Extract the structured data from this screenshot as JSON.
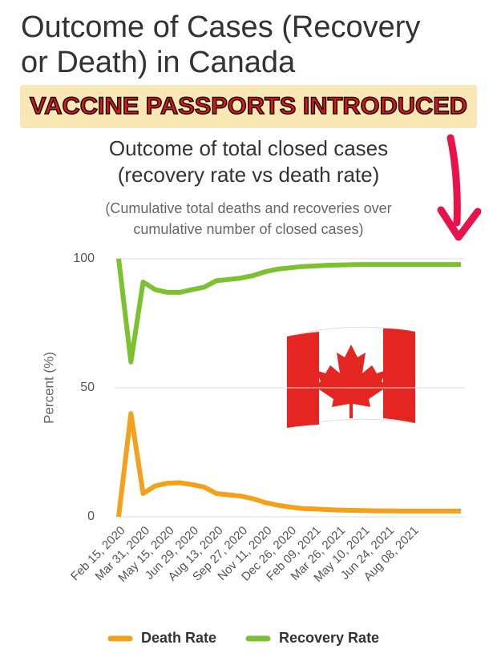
{
  "header": {
    "title_lines": [
      "Outcome of Cases (Recovery",
      "or Death) in Canada"
    ],
    "banner": "VACCINE PASSPORTS INTRODUCED"
  },
  "chart_data": {
    "type": "line",
    "title_lines": [
      "Outcome of total closed cases",
      "(recovery rate vs death rate)"
    ],
    "subtitle_lines": [
      "(Cumulative total deaths and recoveries over",
      "cumulative number of closed cases)"
    ],
    "ylabel": "Percent (%)",
    "categories": [
      "Feb 15, 2020",
      null,
      "Mar 31, 2020",
      null,
      "May 15, 2020",
      null,
      "Jun 29, 2020",
      null,
      "Aug 13, 2020",
      null,
      "Sep 27, 2020",
      null,
      "Nov 11, 2020",
      null,
      "Dec 26, 2020",
      null,
      "Feb 09, 2021",
      null,
      "Mar 26, 2021",
      null,
      "May 10, 2021",
      null,
      "Jun 24, 2021",
      null,
      "Aug 08, 2021",
      null,
      null,
      null,
      null
    ],
    "series": [
      {
        "name": "Death Rate",
        "color": "#f5a01a",
        "values": [
          0,
          40,
          9,
          12,
          13,
          13.2,
          12.5,
          11.5,
          9,
          8.5,
          8,
          7,
          5.5,
          4.5,
          3.8,
          3.2,
          3,
          2.8,
          2.6,
          2.5,
          2.4,
          2.3,
          2.3,
          2.2,
          2.2,
          2.2,
          2.2,
          2.2,
          2.2
        ]
      },
      {
        "name": "Recovery Rate",
        "color": "#7cc22e",
        "values": [
          100,
          60,
          91,
          88,
          87,
          87,
          88,
          89,
          91.5,
          92,
          92.5,
          93.5,
          95,
          96,
          96.5,
          97,
          97.2,
          97.5,
          97.6,
          97.7,
          97.8,
          97.8,
          97.8,
          97.8,
          97.8,
          97.8,
          97.8,
          97.8,
          97.8
        ]
      }
    ],
    "ylim": [
      0,
      100
    ],
    "yticks": [
      0,
      50,
      100
    ],
    "grid": true,
    "legend": "bottom"
  }
}
